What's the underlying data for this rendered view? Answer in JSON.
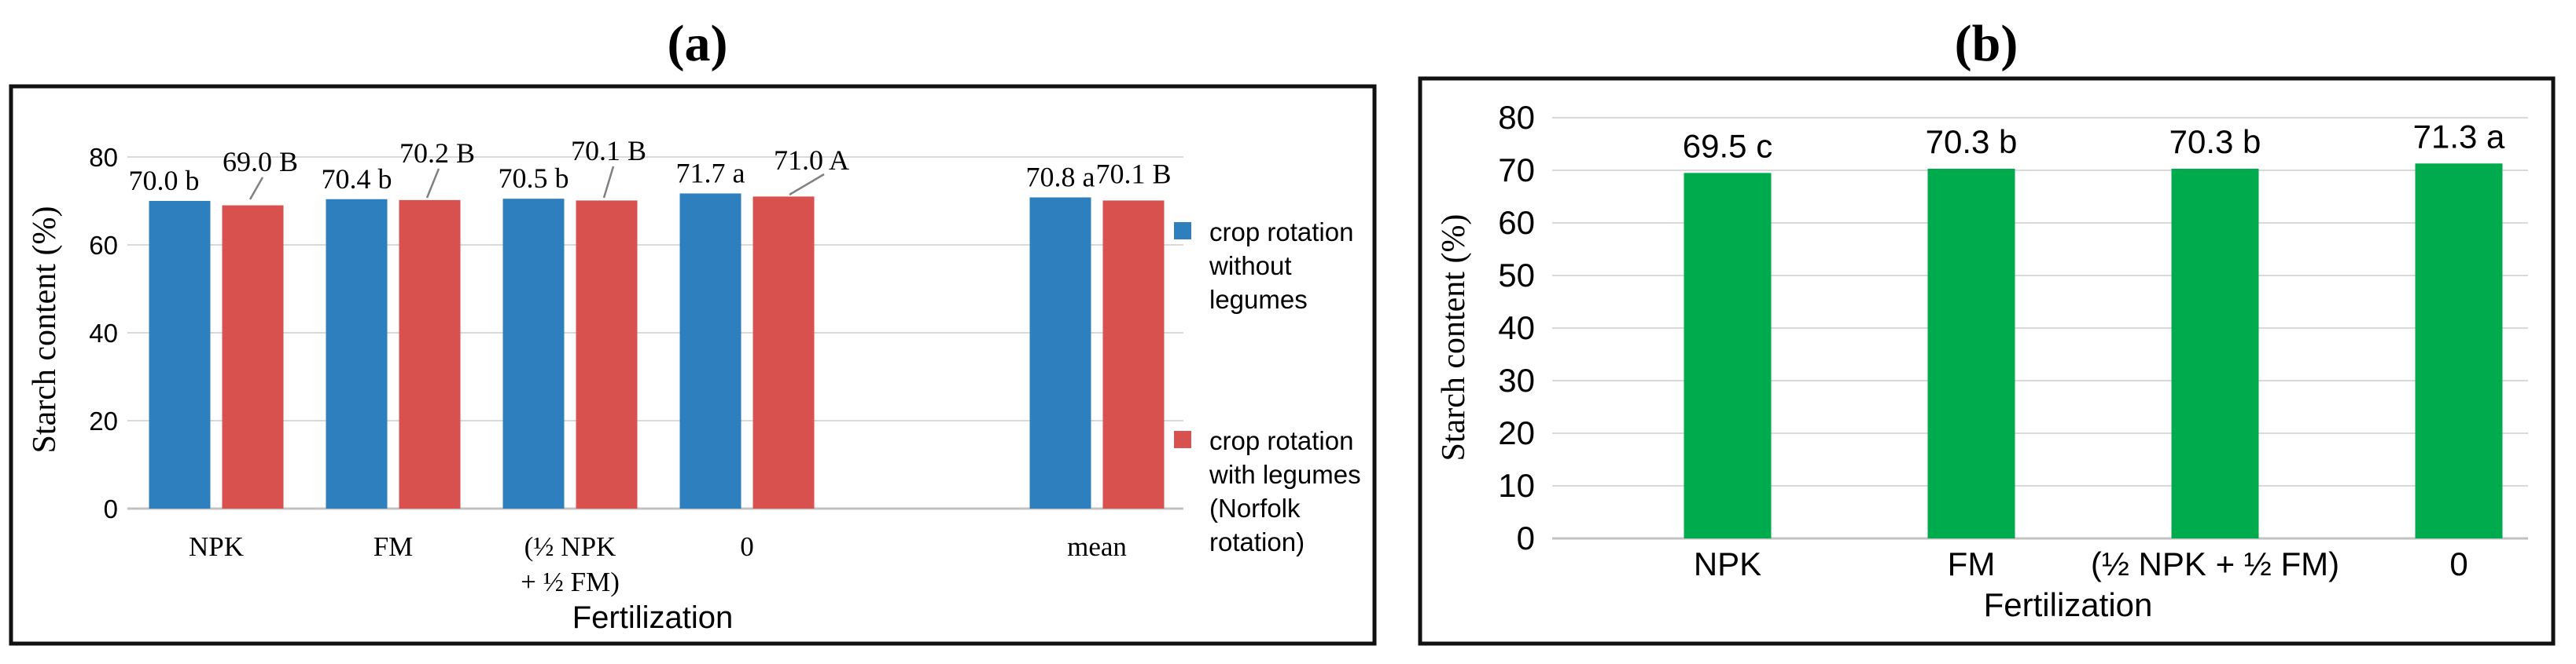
{
  "figure": {
    "panel_a_title": "(a)",
    "panel_b_title": "(b)"
  },
  "colors": {
    "blue": "#2E7FBE",
    "red": "#D8514F",
    "green": "#00AB4E",
    "grid": "#D9D9D9",
    "axis": "#C2C2C2",
    "leader": "#808080",
    "border": "#111111",
    "text": "#000000"
  },
  "chart_data": [
    {
      "id": "a",
      "type": "bar",
      "title": "(a)",
      "xlabel": "Fertilization",
      "ylabel": "Starch content (%)",
      "ylim": [
        0,
        80
      ],
      "yticks": [
        0,
        20,
        40,
        60,
        80
      ],
      "grid": true,
      "legend_position": "right",
      "categories": [
        "NPK",
        "FM",
        "(½ NPK\n+ ½ FM)",
        "0",
        "mean"
      ],
      "series": [
        {
          "name": "crop rotation without legumes",
          "color": "blue",
          "values": [
            70.0,
            70.4,
            70.5,
            71.7,
            70.8
          ],
          "data_labels": [
            "70.0 b",
            "70.4 b",
            "70.5 b",
            "71.7 a",
            "70.8 a"
          ]
        },
        {
          "name": "crop rotation with legumes (Norfolk rotation)",
          "color": "red",
          "values": [
            69.0,
            70.2,
            70.1,
            71.0,
            70.1
          ],
          "data_labels": [
            "69.0 B",
            "70.2 B",
            "70.1 B",
            "71.0 A",
            "70.1 B"
          ],
          "label_leader_lines": [
            true,
            true,
            true,
            true,
            false
          ]
        }
      ],
      "legend": [
        {
          "color": "blue",
          "lines": [
            "crop rotation",
            "without",
            "legumes"
          ]
        },
        {
          "color": "red",
          "lines": [
            "crop rotation",
            "with legumes",
            "(Norfolk",
            "rotation)"
          ]
        }
      ]
    },
    {
      "id": "b",
      "type": "bar",
      "title": "(b)",
      "xlabel": "Fertilization",
      "ylabel": "Starch content (%)",
      "ylim": [
        0,
        80
      ],
      "yticks": [
        0,
        10,
        20,
        30,
        40,
        50,
        60,
        70,
        80
      ],
      "grid": true,
      "legend_position": "none",
      "categories": [
        "NPK",
        "FM",
        "(½ NPK + ½ FM)",
        "0"
      ],
      "series": [
        {
          "name": "starch content",
          "color": "green",
          "values": [
            69.5,
            70.3,
            70.3,
            71.3
          ],
          "data_labels": [
            "69.5 c",
            "70.3 b",
            "70.3 b",
            "71.3 a"
          ]
        }
      ]
    }
  ]
}
